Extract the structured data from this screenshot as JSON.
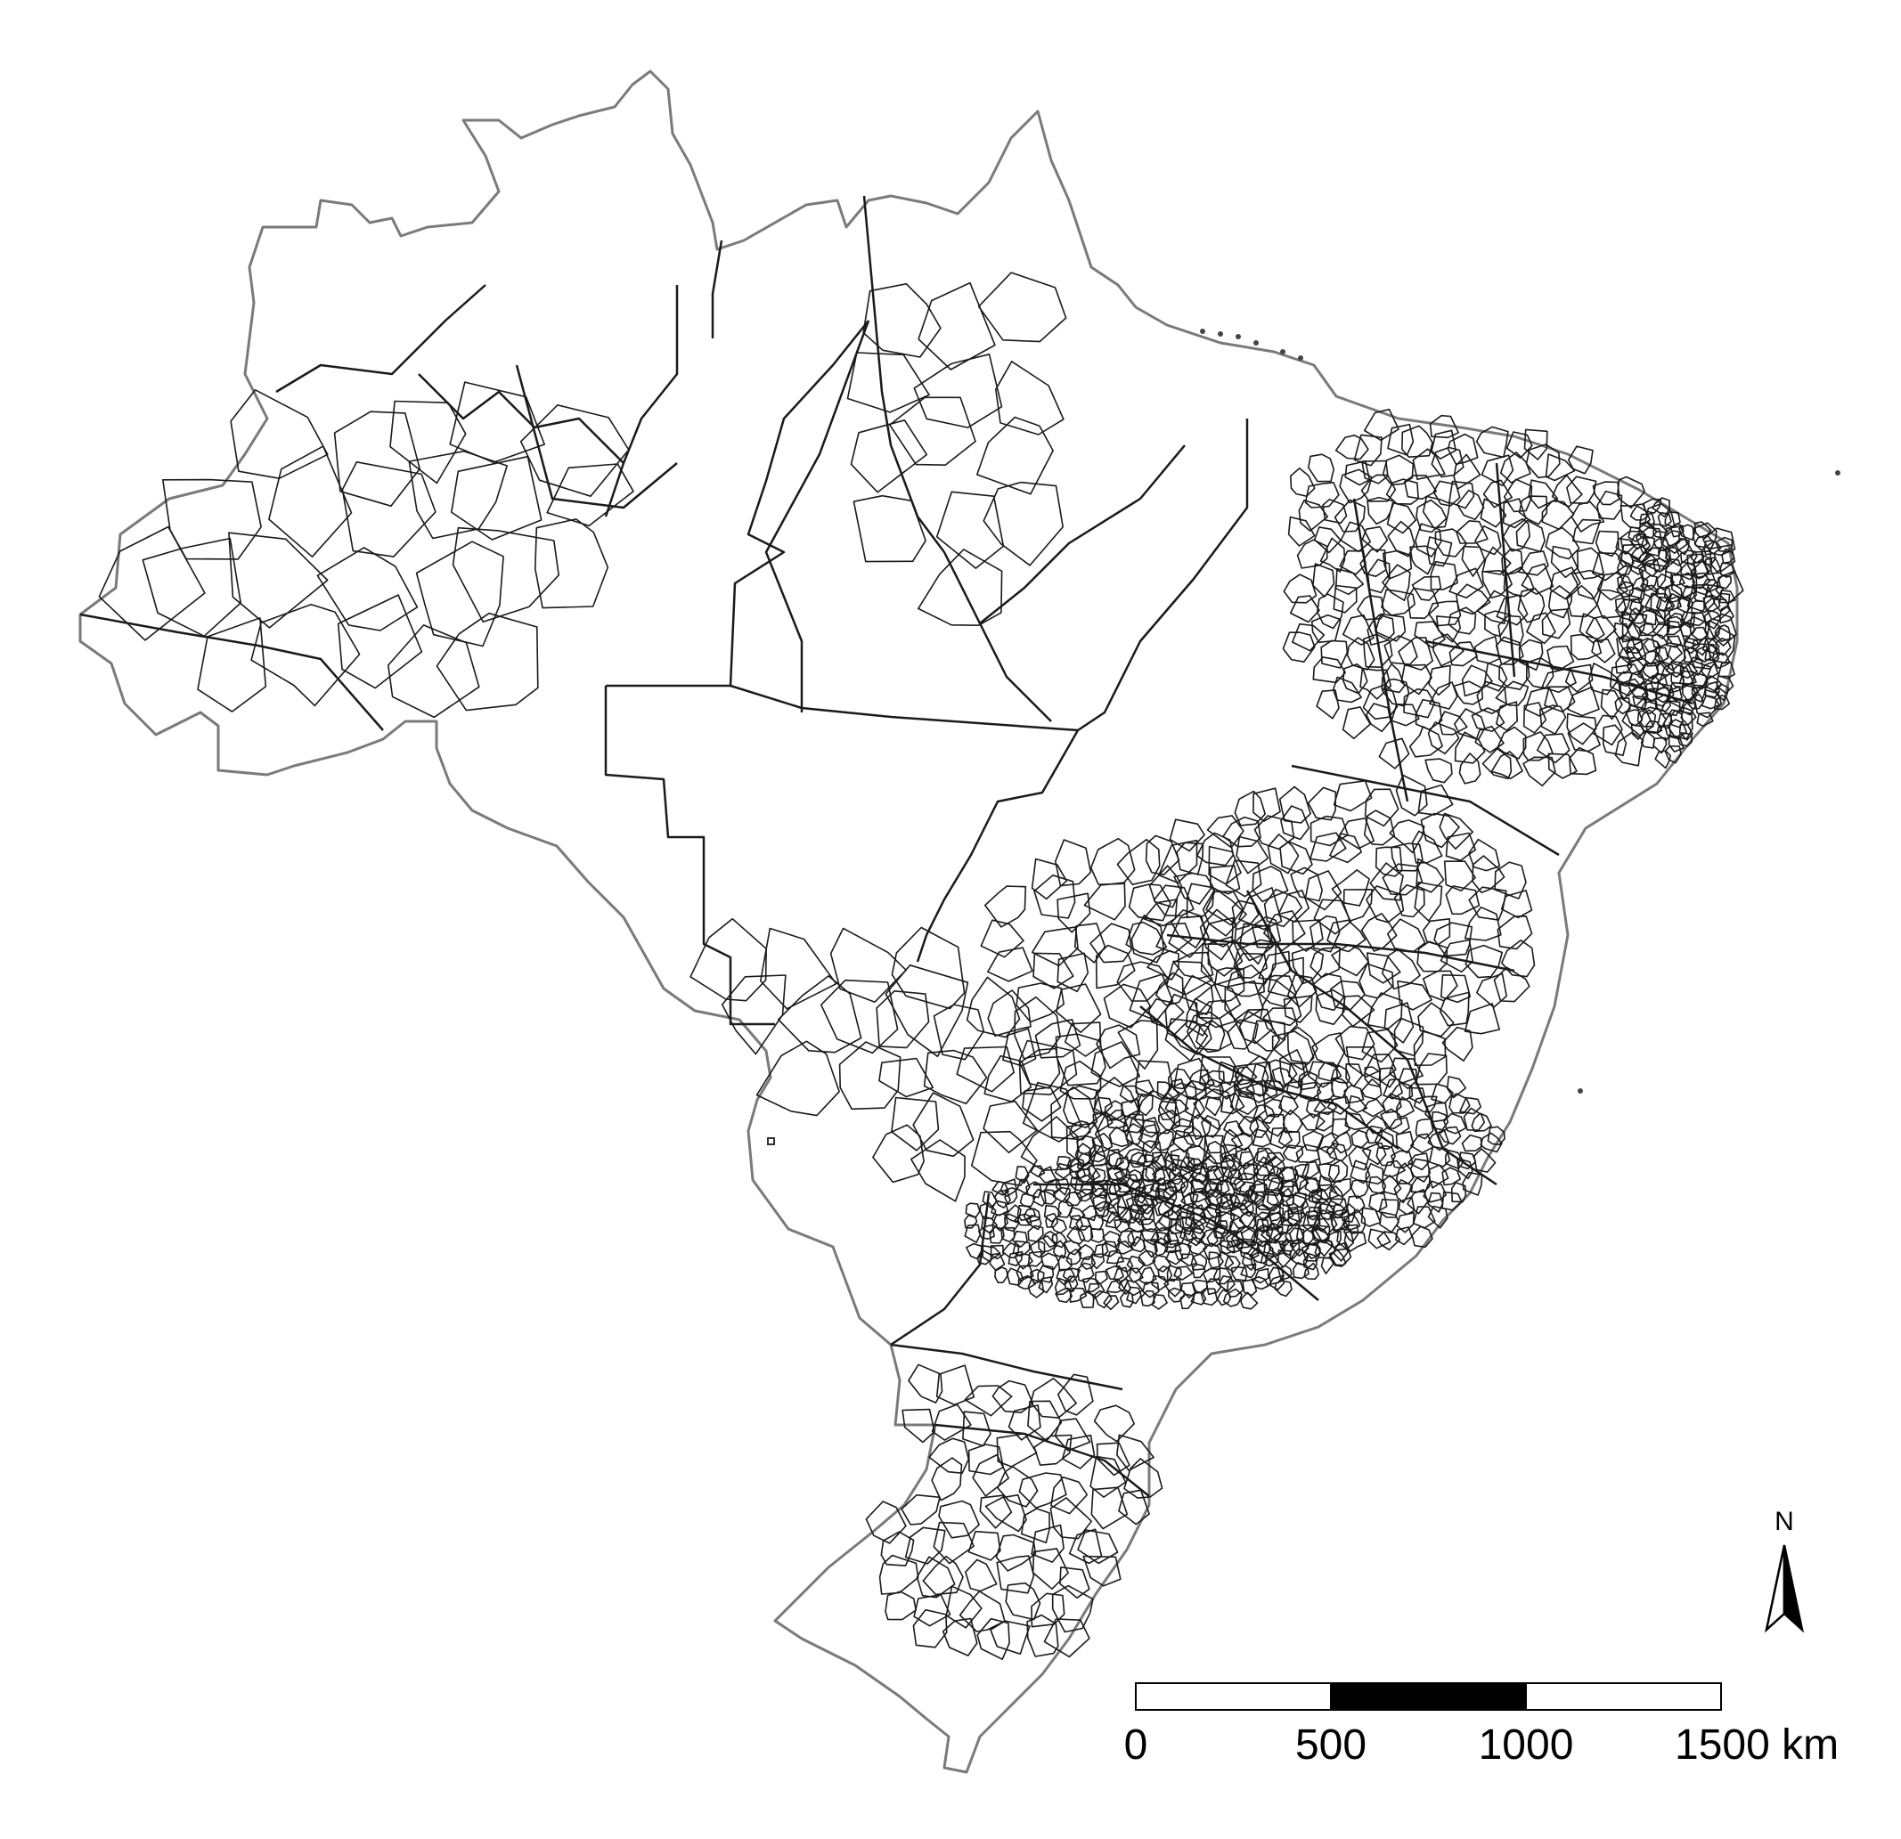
{
  "map": {
    "colors": {
      "border": "#7a7a7a",
      "municipality": "#1a1a1a",
      "fill": "#ffffff",
      "background": "#ffffff"
    }
  },
  "scale_bar": {
    "labels": [
      "0",
      "500",
      "1000",
      "1500 km"
    ],
    "segments": [
      "white",
      "black",
      "white"
    ]
  },
  "north_arrow": {
    "label": "N",
    "icon": "north-arrow-icon"
  }
}
